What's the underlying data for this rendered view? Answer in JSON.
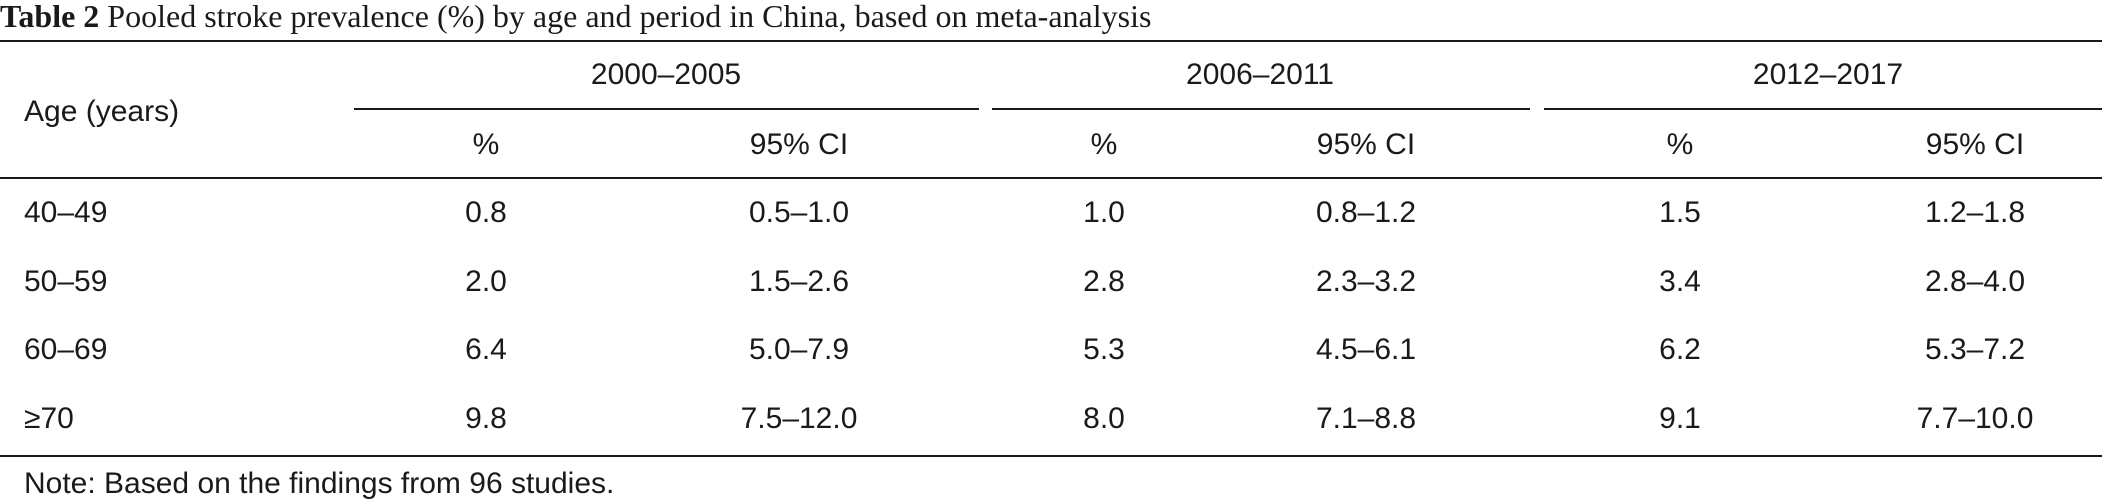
{
  "caption": {
    "label": "Table 2",
    "text": " Pooled stroke prevalence (%) by age and period in China, based on meta-analysis"
  },
  "table": {
    "row_header": "Age (years)",
    "groups": [
      {
        "title": "2000–2005",
        "col1": "%",
        "col2": "95% CI"
      },
      {
        "title": "2006–2011",
        "col1": "%",
        "col2": "95% CI"
      },
      {
        "title": "2012–2017",
        "col1": "%",
        "col2": "95% CI"
      }
    ],
    "rows": [
      {
        "age": "40–49",
        "cells": [
          "0.8",
          "0.5–1.0",
          "1.0",
          "0.8–1.2",
          "1.5",
          "1.2–1.8"
        ]
      },
      {
        "age": "50–59",
        "cells": [
          "2.0",
          "1.5–2.6",
          "2.8",
          "2.3–3.2",
          "3.4",
          "2.8–4.0"
        ]
      },
      {
        "age": "60–69",
        "cells": [
          "6.4",
          "5.0–7.9",
          "5.3",
          "4.5–6.1",
          "6.2",
          "5.3–7.2"
        ]
      },
      {
        "age": "≥70",
        "cells": [
          "9.8",
          "7.5–12.0",
          "8.0",
          "7.1–8.8",
          "9.1",
          "7.7–10.0"
        ]
      }
    ]
  },
  "note": "Note: Based on the findings from 96 studies."
}
